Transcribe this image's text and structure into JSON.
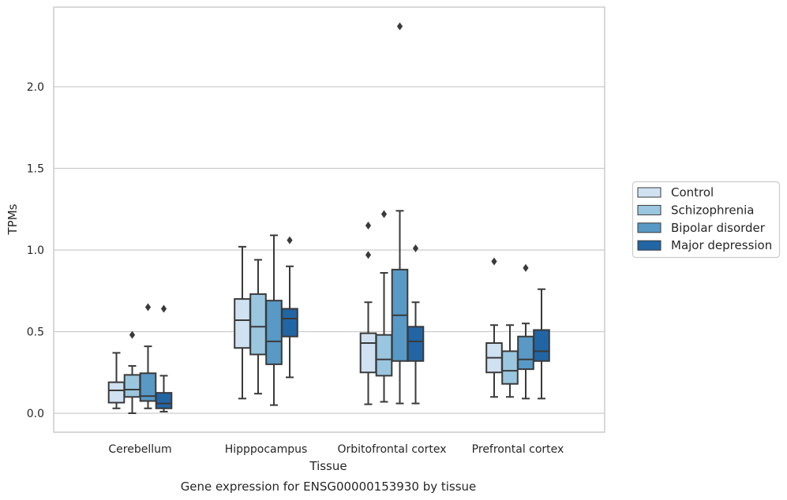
{
  "chart_data": {
    "type": "box",
    "title": "Gene expression for ENSG00000153930 by tissue",
    "xlabel": "Tissue",
    "ylabel": "TPMs",
    "ylim": [
      -0.115,
      2.5
    ],
    "yticks": [
      0.0,
      0.5,
      1.0,
      1.5,
      2.0
    ],
    "ytick_labels": [
      "0.0",
      "0.5",
      "1.0",
      "1.5",
      "2.0"
    ],
    "grid": "horizontal",
    "legend_position": "outside-right",
    "categories": [
      "Cerebellum",
      "Hipppocampus",
      "Orbitofrontal cortex",
      "Prefrontal cortex"
    ],
    "series": [
      {
        "name": "Control",
        "color": "#d0e1f1",
        "boxes": [
          {
            "q1": 0.065,
            "median": 0.14,
            "q3": 0.19,
            "whisker_low": 0.03,
            "whisker_high": 0.37,
            "outliers": []
          },
          {
            "q1": 0.4,
            "median": 0.57,
            "q3": 0.7,
            "whisker_low": 0.09,
            "whisker_high": 1.02,
            "outliers": []
          },
          {
            "q1": 0.25,
            "median": 0.43,
            "q3": 0.49,
            "whisker_low": 0.055,
            "whisker_high": 0.68,
            "outliers": [
              0.97,
              1.15
            ]
          },
          {
            "q1": 0.25,
            "median": 0.34,
            "q3": 0.43,
            "whisker_low": 0.1,
            "whisker_high": 0.54,
            "outliers": [
              0.93
            ]
          }
        ]
      },
      {
        "name": "Schizophrenia",
        "color": "#9ac7df",
        "boxes": [
          {
            "q1": 0.1,
            "median": 0.145,
            "q3": 0.235,
            "whisker_low": 0.0,
            "whisker_high": 0.29,
            "outliers": [
              0.48
            ]
          },
          {
            "q1": 0.36,
            "median": 0.53,
            "q3": 0.73,
            "whisker_low": 0.12,
            "whisker_high": 0.94,
            "outliers": []
          },
          {
            "q1": 0.23,
            "median": 0.33,
            "q3": 0.48,
            "whisker_low": 0.07,
            "whisker_high": 0.86,
            "outliers": [
              1.22
            ]
          },
          {
            "q1": 0.18,
            "median": 0.26,
            "q3": 0.38,
            "whisker_low": 0.1,
            "whisker_high": 0.54,
            "outliers": []
          }
        ]
      },
      {
        "name": "Bipolar disorder",
        "color": "#5899c6",
        "boxes": [
          {
            "q1": 0.075,
            "median": 0.105,
            "q3": 0.245,
            "whisker_low": 0.03,
            "whisker_high": 0.41,
            "outliers": [
              0.65
            ]
          },
          {
            "q1": 0.3,
            "median": 0.44,
            "q3": 0.69,
            "whisker_low": 0.05,
            "whisker_high": 1.09,
            "outliers": []
          },
          {
            "q1": 0.32,
            "median": 0.6,
            "q3": 0.88,
            "whisker_low": 0.06,
            "whisker_high": 1.24,
            "outliers": [
              2.37
            ]
          },
          {
            "q1": 0.27,
            "median": 0.33,
            "q3": 0.47,
            "whisker_low": 0.09,
            "whisker_high": 0.55,
            "outliers": [
              0.89
            ]
          }
        ]
      },
      {
        "name": "Major depression",
        "color": "#2265a5",
        "boxes": [
          {
            "q1": 0.03,
            "median": 0.06,
            "q3": 0.125,
            "whisker_low": 0.01,
            "whisker_high": 0.23,
            "outliers": [
              0.64
            ]
          },
          {
            "q1": 0.47,
            "median": 0.58,
            "q3": 0.64,
            "whisker_low": 0.22,
            "whisker_high": 0.9,
            "outliers": [
              1.06
            ]
          },
          {
            "q1": 0.32,
            "median": 0.44,
            "q3": 0.53,
            "whisker_low": 0.06,
            "whisker_high": 0.68,
            "outliers": [
              1.01
            ]
          },
          {
            "q1": 0.32,
            "median": 0.38,
            "q3": 0.51,
            "whisker_low": 0.09,
            "whisker_high": 0.76,
            "outliers": []
          }
        ]
      }
    ]
  }
}
